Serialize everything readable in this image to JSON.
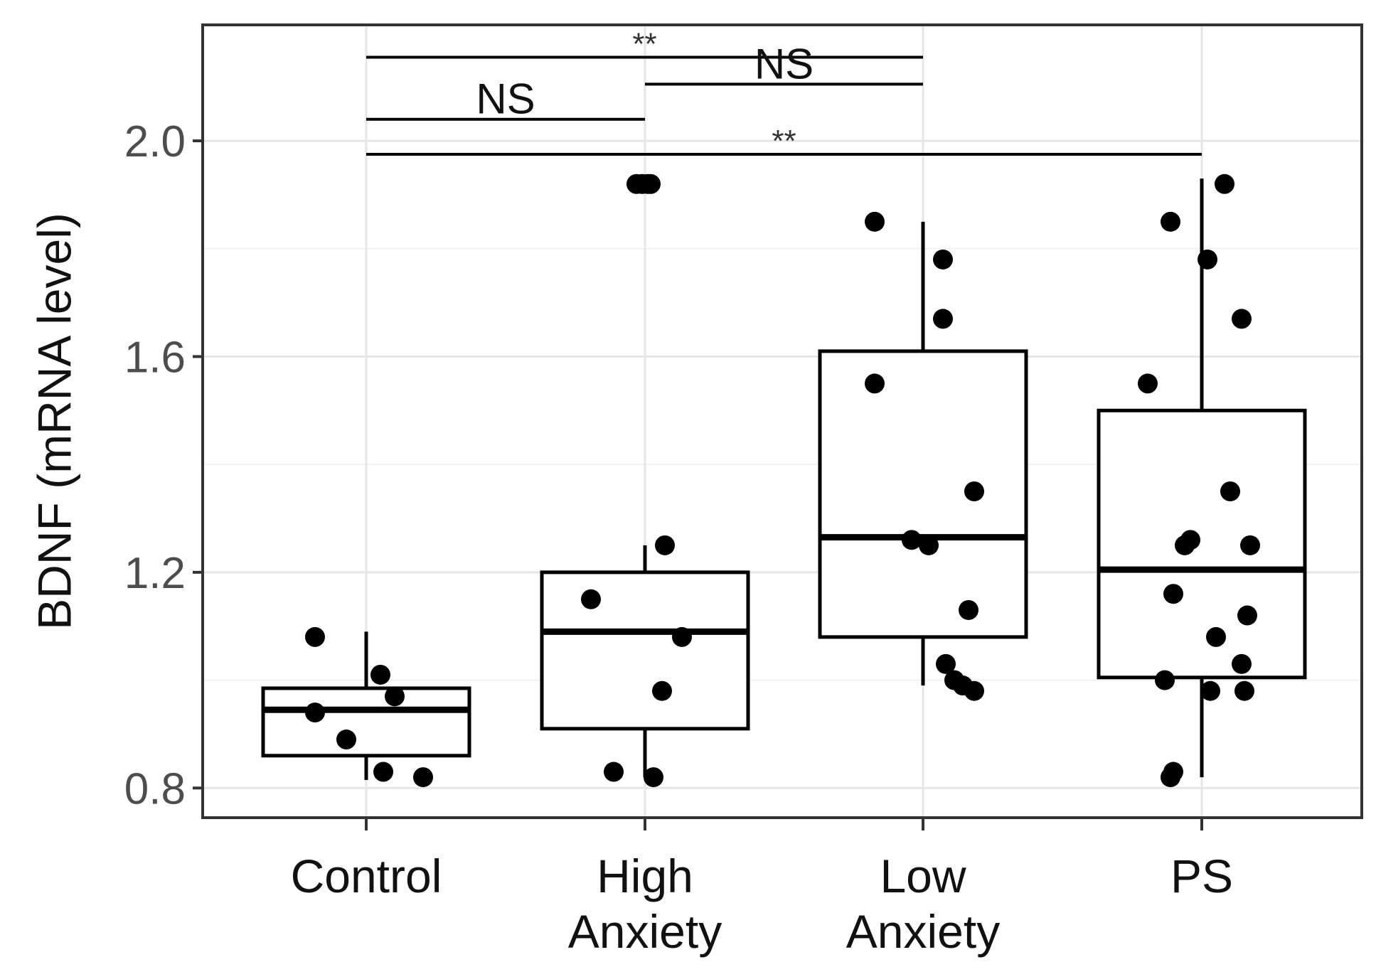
{
  "chart_data": {
    "type": "boxplot",
    "title": "",
    "xlabel": "",
    "ylabel": "BDNF (mRNA level)",
    "ylim": [
      0.745,
      2.215
    ],
    "yticks": [
      0.8,
      1.2,
      1.6,
      2.0
    ],
    "ytick_labels": [
      "0.8",
      "1.2",
      "1.6",
      "2.0"
    ],
    "grid": true,
    "categories": [
      "Control",
      "High Anxiety",
      "Low Anxiety",
      "PS"
    ],
    "category_label_lines": [
      [
        "Control"
      ],
      [
        "High",
        "Anxiety"
      ],
      [
        "Low",
        "Anxiety"
      ],
      [
        "PS"
      ]
    ],
    "boxes": [
      {
        "q1": 0.86,
        "median": 0.945,
        "q3": 0.985,
        "whisker_low": 0.815,
        "whisker_high": 1.09
      },
      {
        "q1": 0.91,
        "median": 1.09,
        "q3": 1.2,
        "whisker_low": 0.82,
        "whisker_high": 1.25
      },
      {
        "q1": 1.08,
        "median": 1.265,
        "q3": 1.61,
        "whisker_low": 0.99,
        "whisker_high": 1.85
      },
      {
        "q1": 1.005,
        "median": 1.205,
        "q3": 1.5,
        "whisker_low": 0.82,
        "whisker_high": 1.93
      }
    ],
    "points": [
      [
        {
          "j": -0.18,
          "y": 1.08
        },
        {
          "j": -0.18,
          "y": 0.94
        },
        {
          "j": -0.07,
          "y": 0.89
        },
        {
          "j": 0.05,
          "y": 1.01
        },
        {
          "j": 0.1,
          "y": 0.97
        },
        {
          "j": 0.06,
          "y": 0.83
        },
        {
          "j": 0.2,
          "y": 0.82
        }
      ],
      [
        {
          "j": -0.03,
          "y": 1.92
        },
        {
          "j": -0.01,
          "y": 1.92
        },
        {
          "j": 0.01,
          "y": 1.92
        },
        {
          "j": 0.02,
          "y": 1.92
        },
        {
          "j": 0.07,
          "y": 1.25
        },
        {
          "j": -0.19,
          "y": 1.15
        },
        {
          "j": 0.13,
          "y": 1.08
        },
        {
          "j": 0.06,
          "y": 0.98
        },
        {
          "j": -0.11,
          "y": 0.83
        },
        {
          "j": 0.03,
          "y": 0.82
        }
      ],
      [
        {
          "j": -0.17,
          "y": 1.85
        },
        {
          "j": 0.07,
          "y": 1.78
        },
        {
          "j": 0.07,
          "y": 1.67
        },
        {
          "j": -0.17,
          "y": 1.55
        },
        {
          "j": 0.18,
          "y": 1.35
        },
        {
          "j": -0.04,
          "y": 1.26
        },
        {
          "j": 0.02,
          "y": 1.25
        },
        {
          "j": 0.16,
          "y": 1.13
        },
        {
          "j": 0.08,
          "y": 1.03
        },
        {
          "j": 0.11,
          "y": 1.0
        },
        {
          "j": 0.14,
          "y": 0.99
        },
        {
          "j": 0.18,
          "y": 0.98
        }
      ],
      [
        {
          "j": 0.08,
          "y": 1.92
        },
        {
          "j": -0.11,
          "y": 1.85
        },
        {
          "j": 0.02,
          "y": 1.78
        },
        {
          "j": 0.14,
          "y": 1.67
        },
        {
          "j": -0.19,
          "y": 1.55
        },
        {
          "j": 0.1,
          "y": 1.35
        },
        {
          "j": -0.04,
          "y": 1.26
        },
        {
          "j": -0.06,
          "y": 1.25
        },
        {
          "j": 0.17,
          "y": 1.25
        },
        {
          "j": -0.1,
          "y": 1.16
        },
        {
          "j": 0.16,
          "y": 1.12
        },
        {
          "j": 0.05,
          "y": 1.08
        },
        {
          "j": 0.14,
          "y": 1.03
        },
        {
          "j": -0.13,
          "y": 1.0
        },
        {
          "j": 0.03,
          "y": 0.98
        },
        {
          "j": 0.15,
          "y": 0.98
        },
        {
          "j": -0.1,
          "y": 0.83
        },
        {
          "j": -0.11,
          "y": 0.82
        }
      ]
    ],
    "comparisons": [
      {
        "from": 0,
        "to": 2,
        "y": 2.155,
        "label": "**"
      },
      {
        "from": 1,
        "to": 2,
        "y": 2.105,
        "label": "NS"
      },
      {
        "from": 0,
        "to": 1,
        "y": 2.04,
        "label": "NS"
      },
      {
        "from": 0,
        "to": 3,
        "y": 1.975,
        "label": "**"
      }
    ]
  }
}
